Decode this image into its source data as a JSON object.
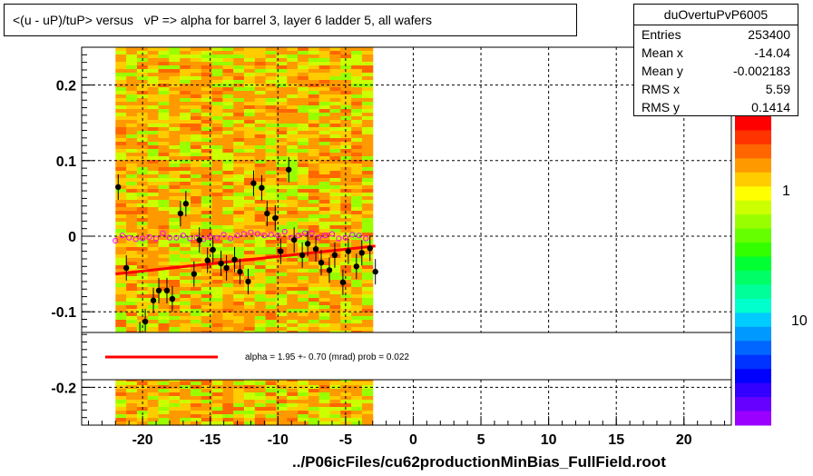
{
  "title": "<(u - uP)/tuP> versus   vP => alpha for barrel 3, layer 6 ladder 5, all wafers",
  "footer": "../P06icFiles/cu62productionMinBias_FullField.root",
  "stats": {
    "name": "duOvertuPvP6005",
    "rows": [
      {
        "label": "Entries",
        "value": "253400"
      },
      {
        "label": "Mean x",
        "value": "-14.04"
      },
      {
        "label": "Mean y",
        "value": "-0.002183"
      },
      {
        "label": "RMS x",
        "value": "5.59"
      },
      {
        "label": "RMS y",
        "value": "0.1414"
      }
    ]
  },
  "legend": {
    "text": "alpha =    1.95 +-  0.70 (mrad) prob = 0.022",
    "line_color": "#ff0000"
  },
  "colors": {
    "fit_line": "#ff0000",
    "points": "#000000",
    "open_markers": "#ff00ff"
  },
  "chart_data": {
    "type": "scatter",
    "xlim": [
      -24.5,
      23.5
    ],
    "ylim": [
      -0.25,
      0.25
    ],
    "x_ticks": [
      -20,
      -15,
      -10,
      -5,
      0,
      5,
      10,
      15,
      20
    ],
    "y_ticks": [
      -0.2,
      -0.1,
      0,
      0.1,
      0.2
    ],
    "grid": true,
    "palette_labels": [
      "1",
      "10"
    ],
    "heatmap_x_range": [
      -22,
      -3
    ],
    "fit_line": {
      "x": [
        -22,
        -2.8
      ],
      "y": [
        -0.05,
        -0.013
      ]
    },
    "series": [
      {
        "x": [
          -21.8,
          -21.2,
          -20.2,
          -19.8,
          -19.2,
          -18.8,
          -18.2,
          -17.8,
          -17.2,
          -16.8,
          -16.2,
          -15.8,
          -15.2,
          -14.8,
          -14.2,
          -13.8,
          -13.2,
          -12.8,
          -12.2,
          -11.8,
          -11.2,
          -10.8,
          -10.2,
          -9.8,
          -9.2,
          -8.8,
          -8.2,
          -7.8,
          -7.2,
          -6.8,
          -6.2,
          -5.8,
          -5.2,
          -4.8,
          -4.2,
          -3.8,
          -3.2,
          -2.8
        ],
        "y": [
          0.065,
          -0.042,
          -0.13,
          -0.113,
          -0.085,
          -0.072,
          -0.072,
          -0.083,
          0.03,
          0.043,
          -0.05,
          -0.005,
          -0.032,
          -0.018,
          -0.036,
          -0.042,
          -0.031,
          -0.047,
          -0.06,
          0.07,
          0.064,
          0.03,
          0.024,
          -0.02,
          0.088,
          -0.005,
          -0.025,
          -0.01,
          -0.017,
          -0.035,
          -0.045,
          -0.025,
          -0.061,
          -0.02,
          -0.04,
          -0.022,
          -0.016,
          -0.047
        ]
      },
      {
        "x": [
          -22,
          -21.5,
          -21,
          -20.5,
          -20,
          -19.5,
          -19,
          -18.5,
          -18,
          -17.5,
          -17,
          -16.5,
          -16,
          -15.5,
          -15,
          -14.5,
          -14,
          -13.5,
          -13,
          -12.5,
          -12,
          -11.5,
          -11,
          -10.5,
          -10,
          -9.5,
          -9,
          -8.5,
          -8,
          -7.5,
          -7,
          -6.5,
          -6,
          -5.5,
          -5,
          -4.5,
          -4,
          -3.5
        ],
        "y": [
          -0.006,
          0.001,
          -0.002,
          -0.004,
          -0.003,
          -0.001,
          -0.003,
          0.004,
          -0.002,
          -0.002,
          0.001,
          -0.003,
          -0.002,
          -0.004,
          -0.001,
          -0.002,
          0.002,
          -0.003,
          0.001,
          0.003,
          0.005,
          0.003,
          0.001,
          0.002,
          0.001,
          0.006,
          -0.002,
          0.001,
          0.004,
          0.004,
          -0.002,
          0.001,
          0.003,
          -0.003,
          -0.002,
          0.002,
          0.001,
          -0.003
        ]
      }
    ]
  }
}
